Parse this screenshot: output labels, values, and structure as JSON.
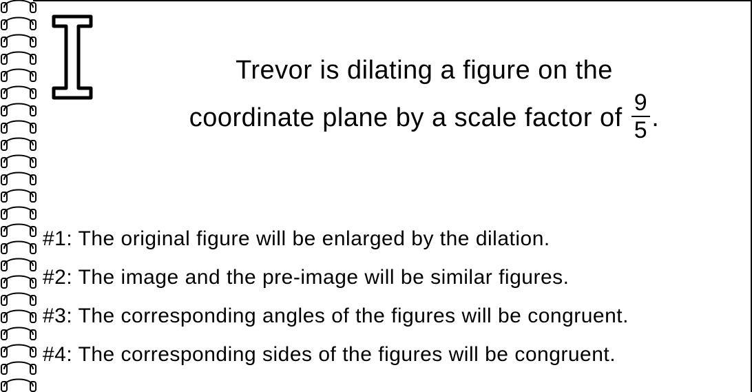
{
  "section_label": "I",
  "prompt_line1": "Trevor is dilating a figure on the",
  "prompt_line2_pre": "coordinate plane by a scale factor of ",
  "fraction_num": "9",
  "fraction_den": "5",
  "prompt_line2_post": ".",
  "statements": [
    "#1: The original figure will be enlarged by the dilation.",
    "#2: The image and the pre-image will be similar figures.",
    "#3: The corresponding angles of the figures will be congruent.",
    "#4: The corresponding sides of the figures will be congruent."
  ],
  "colors": {
    "text": "#000000",
    "background": "#ffffff",
    "spiral": "#000000"
  }
}
